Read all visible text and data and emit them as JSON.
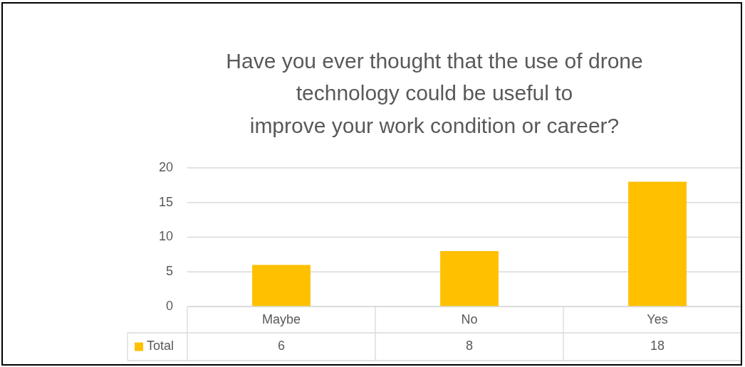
{
  "chart_data": {
    "type": "bar",
    "title": "Have you ever thought that the use of drone\ntechnology could be useful to\nimprove your work condition or career?",
    "categories": [
      "Maybe",
      "No",
      "Yes"
    ],
    "series": [
      {
        "name": "Total",
        "color": "#ffc000",
        "values": [
          6,
          8,
          18
        ]
      }
    ],
    "ylim": [
      0,
      20
    ],
    "yticks": [
      0,
      5,
      10,
      15,
      20
    ],
    "grid": "y",
    "legend": "bottom left",
    "data_labels": true
  }
}
